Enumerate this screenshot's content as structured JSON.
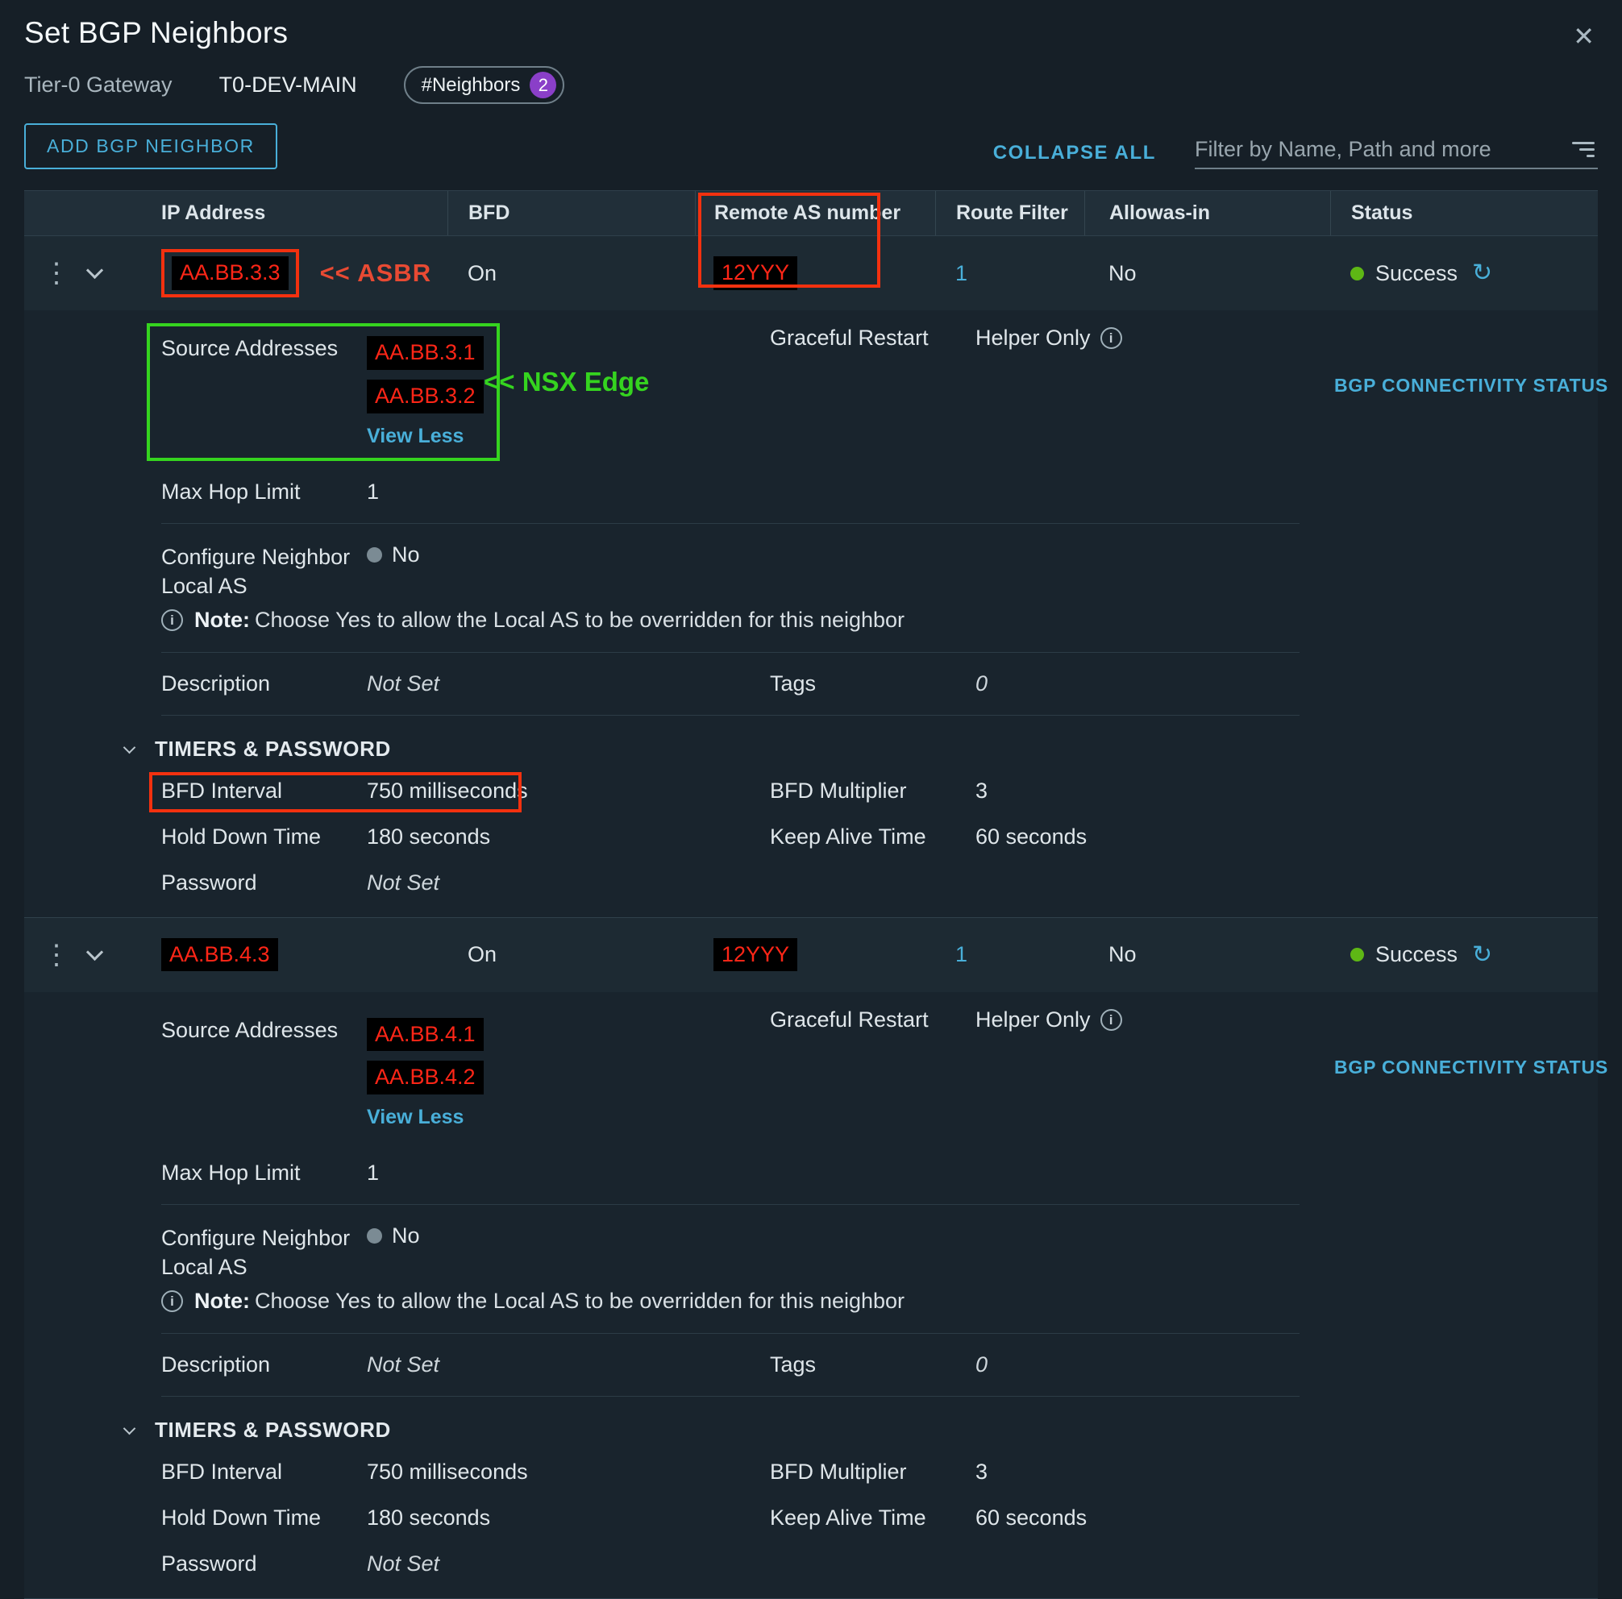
{
  "dialog": {
    "title": "Set BGP Neighbors"
  },
  "icons": {
    "close": "✕",
    "kebab": "⋮",
    "refresh": "↻",
    "info": "i"
  },
  "breadcrumb": {
    "gateway_label": "Tier-0 Gateway",
    "gateway_name": "T0-DEV-MAIN",
    "badge_label": "#Neighbors",
    "badge_count": "2"
  },
  "toolbar": {
    "add_button": "ADD BGP NEIGHBOR",
    "collapse_all": "COLLAPSE ALL",
    "filter_placeholder": "Filter by Name, Path and more"
  },
  "table": {
    "headers": [
      "IP Address",
      "BFD",
      "Remote AS number",
      "Route Filter",
      "Allowas-in",
      "Status"
    ]
  },
  "annotations": {
    "asbr": "<< ASBR",
    "nsx_edge": "<< NSX Edge",
    "red_color": "#f3310f",
    "green_color": "#35d41f",
    "redacted_text_color": "#ff2617"
  },
  "colors": {
    "accent_blue": "#49afd9",
    "success_green": "#5eb715",
    "badge_purple": "#8a3fc8"
  },
  "labels": {
    "source_addresses": "Source Addresses",
    "view_less": "View Less",
    "graceful_restart": "Graceful Restart",
    "bgp_connectivity_status": "BGP CONNECTIVITY STATUS",
    "max_hop_limit": "Max Hop Limit",
    "configure_neighbor_line1": "Configure Neighbor",
    "configure_neighbor_line2": "Local AS",
    "note_bold": "Note:",
    "note_text": "Choose Yes to allow the Local AS to be overridden for this neighbor",
    "description": "Description",
    "tags": "Tags",
    "timers_password": "TIMERS & PASSWORD",
    "bfd_interval": "BFD Interval",
    "bfd_multiplier": "BFD Multiplier",
    "hold_down_time": "Hold Down Time",
    "keep_alive_time": "Keep Alive Time",
    "password": "Password"
  },
  "neighbors": [
    {
      "ip": "AA.BB.3.3",
      "bfd": "On",
      "remote_as": "12YYY",
      "route_filter": "1",
      "allowas_in": "No",
      "status": "Success",
      "source_addresses": [
        "AA.BB.3.1",
        "AA.BB.3.2"
      ],
      "graceful_restart": "Helper Only",
      "max_hop_limit": "1",
      "configure_local_as": "No",
      "description": "Not Set",
      "tags": "0",
      "bfd_interval": "750 milliseconds",
      "bfd_multiplier": "3",
      "hold_down_time": "180 seconds",
      "keep_alive_time": "60 seconds",
      "password": "Not Set"
    },
    {
      "ip": "AA.BB.4.3",
      "bfd": "On",
      "remote_as": "12YYY",
      "route_filter": "1",
      "allowas_in": "No",
      "status": "Success",
      "source_addresses": [
        "AA.BB.4.1",
        "AA.BB.4.2"
      ],
      "graceful_restart": "Helper Only",
      "max_hop_limit": "1",
      "configure_local_as": "No",
      "description": "Not Set",
      "tags": "0",
      "bfd_interval": "750 milliseconds",
      "bfd_multiplier": "3",
      "hold_down_time": "180 seconds",
      "keep_alive_time": "60 seconds",
      "password": "Not Set"
    }
  ]
}
